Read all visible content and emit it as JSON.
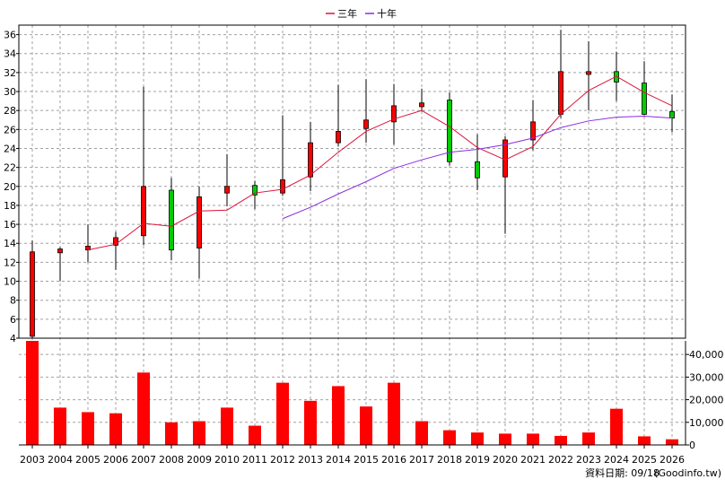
{
  "legend": {
    "items": [
      {
        "label": "三年",
        "color": "#dc143c"
      },
      {
        "label": "十年",
        "color": "#8a2be2"
      }
    ]
  },
  "footer": {
    "date_label": "資料日期: 09/18",
    "source": "(Goodinfo.tw)"
  },
  "colors": {
    "up": "#ff0000",
    "down": "#00cc00",
    "volume": "#ff0000",
    "ma3": "#dc143c",
    "ma10": "#8a2be2",
    "grid": "#a0a0a0"
  },
  "chart_data": [
    {
      "type": "candlestick",
      "categories": [
        "2003",
        "2004",
        "2005",
        "2006",
        "2007",
        "2008",
        "2009",
        "2010",
        "2011",
        "2012",
        "2013",
        "2014",
        "2015",
        "2016",
        "2017",
        "2018",
        "2019",
        "2020",
        "2021",
        "2022",
        "2023",
        "2024",
        "2025",
        "2026"
      ],
      "ylim": [
        4,
        37
      ],
      "y_ticks": [
        4,
        6,
        8,
        10,
        12,
        14,
        16,
        18,
        20,
        22,
        24,
        26,
        28,
        30,
        32,
        34,
        36
      ],
      "y_axis_side": "left",
      "grid": true,
      "legend_position": "top-center",
      "candles": [
        {
          "open": 4.2,
          "high": 14.3,
          "low": 4.0,
          "close": 13.1
        },
        {
          "open": 13.0,
          "high": 13.6,
          "low": 10.0,
          "close": 13.4
        },
        {
          "open": 13.3,
          "high": 16.0,
          "low": 12.0,
          "close": 13.7
        },
        {
          "open": 13.8,
          "high": 15.2,
          "low": 11.2,
          "close": 14.6
        },
        {
          "open": 14.8,
          "high": 30.5,
          "low": 13.8,
          "close": 20.0
        },
        {
          "open": 19.6,
          "high": 20.9,
          "low": 12.2,
          "close": 13.3
        },
        {
          "open": 13.5,
          "high": 20.0,
          "low": 10.3,
          "close": 18.9
        },
        {
          "open": 19.3,
          "high": 23.4,
          "low": 17.9,
          "close": 20.0
        },
        {
          "open": 20.1,
          "high": 20.6,
          "low": 17.6,
          "close": 19.1
        },
        {
          "open": 19.3,
          "high": 27.5,
          "low": 19.0,
          "close": 20.7
        },
        {
          "open": 21.0,
          "high": 26.8,
          "low": 19.5,
          "close": 24.6
        },
        {
          "open": 24.6,
          "high": 30.7,
          "low": 24.2,
          "close": 25.8
        },
        {
          "open": 26.1,
          "high": 31.3,
          "low": 24.6,
          "close": 27.0
        },
        {
          "open": 26.8,
          "high": 30.8,
          "low": 24.4,
          "close": 28.5
        },
        {
          "open": 28.4,
          "high": 30.3,
          "low": 27.9,
          "close": 28.8
        },
        {
          "open": 29.1,
          "high": 29.9,
          "low": 22.2,
          "close": 22.6
        },
        {
          "open": 22.6,
          "high": 25.5,
          "low": 19.6,
          "close": 20.9
        },
        {
          "open": 21.0,
          "high": 25.3,
          "low": 15.0,
          "close": 24.9
        },
        {
          "open": 24.9,
          "high": 29.1,
          "low": 23.8,
          "close": 26.8
        },
        {
          "open": 27.6,
          "high": 36.5,
          "low": 27.2,
          "close": 32.1
        },
        {
          "open": 31.8,
          "high": 35.3,
          "low": 28.0,
          "close": 32.1
        },
        {
          "open": 32.1,
          "high": 34.2,
          "low": 29.0,
          "close": 31.0
        },
        {
          "open": 30.9,
          "high": 33.2,
          "low": 27.5,
          "close": 27.6
        },
        {
          "open": 27.9,
          "high": 29.7,
          "low": 25.7,
          "close": 27.2
        }
      ],
      "series": [
        {
          "name": "三年",
          "values": [
            null,
            null,
            13.3,
            13.9,
            16.1,
            15.8,
            17.4,
            17.5,
            19.3,
            19.7,
            21.2,
            23.6,
            25.8,
            27.1,
            28.0,
            26.3,
            24.1,
            22.8,
            24.2,
            27.6,
            30.1,
            31.6,
            29.9,
            28.5
          ]
        },
        {
          "name": "十年",
          "values": [
            null,
            null,
            null,
            null,
            null,
            null,
            null,
            null,
            null,
            16.6,
            17.8,
            19.2,
            20.5,
            21.9,
            22.8,
            23.6,
            23.9,
            24.4,
            25.1,
            26.2,
            26.9,
            27.3,
            27.4,
            27.2
          ]
        }
      ]
    },
    {
      "type": "bar",
      "categories": [
        "2003",
        "2004",
        "2005",
        "2006",
        "2007",
        "2008",
        "2009",
        "2010",
        "2011",
        "2012",
        "2013",
        "2014",
        "2015",
        "2016",
        "2017",
        "2018",
        "2019",
        "2020",
        "2021",
        "2022",
        "2023",
        "2024",
        "2025",
        "2026"
      ],
      "values": [
        46000,
        16500,
        14500,
        14000,
        32000,
        10000,
        10500,
        16500,
        8500,
        27500,
        19500,
        26000,
        17000,
        27500,
        10500,
        6500,
        5500,
        5000,
        5000,
        4000,
        5500,
        16000,
        3800,
        2500
      ],
      "ylim": [
        0,
        46000
      ],
      "y_ticks": [
        {
          "value": 0,
          "label": "0"
        },
        {
          "value": 10000,
          "label": "10,000"
        },
        {
          "value": 20000,
          "label": "20,000"
        },
        {
          "value": 30000,
          "label": "30,000"
        },
        {
          "value": 40000,
          "label": "40,000"
        }
      ],
      "y_axis_side": "right",
      "grid": true
    }
  ]
}
